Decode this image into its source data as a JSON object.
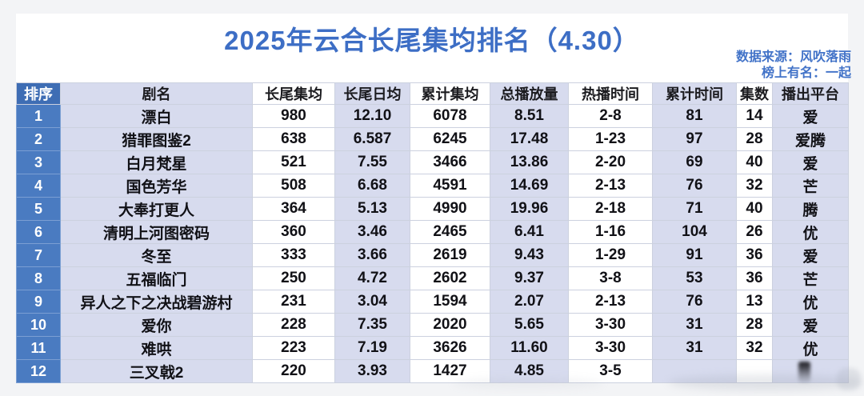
{
  "title": "2025年云合长尾集均排名（4.30）",
  "annotations": {
    "source": "数据来源：风吹落雨",
    "credit": "榜上有名：一起"
  },
  "colors": {
    "title_blue": "#3d6ec5",
    "rank_header_blue": "#3e6db4",
    "rank_cell_blue": "#4a7bc1",
    "lavender_column": "#d7dbee",
    "white_column": "#ffffff",
    "grid_line": "#ccd1df"
  },
  "chart_data": {
    "type": "table",
    "title": "2025年云合长尾集均排名（4.30）",
    "columns": [
      "排序",
      "剧名",
      "长尾集均",
      "长尾日均",
      "累计集均",
      "总播放量",
      "热播时间",
      "累计时间",
      "集数",
      "播出平台"
    ],
    "rows": [
      [
        "1",
        "漂白",
        "980",
        "12.10",
        "6078",
        "8.51",
        "2-8",
        "81",
        "14",
        "爱"
      ],
      [
        "2",
        "猎罪图鉴2",
        "638",
        "6.587",
        "6245",
        "17.48",
        "1-23",
        "97",
        "28",
        "爱腾"
      ],
      [
        "3",
        "白月梵星",
        "521",
        "7.55",
        "3466",
        "13.86",
        "2-20",
        "69",
        "40",
        "爱"
      ],
      [
        "4",
        "国色芳华",
        "508",
        "6.68",
        "4591",
        "14.69",
        "2-13",
        "76",
        "32",
        "芒"
      ],
      [
        "5",
        "大奉打更人",
        "364",
        "5.13",
        "4990",
        "19.96",
        "2-18",
        "71",
        "40",
        "腾"
      ],
      [
        "6",
        "清明上河图密码",
        "360",
        "3.46",
        "2465",
        "6.41",
        "1-16",
        "104",
        "26",
        "优"
      ],
      [
        "7",
        "冬至",
        "333",
        "3.66",
        "2619",
        "9.43",
        "1-29",
        "91",
        "36",
        "爱"
      ],
      [
        "8",
        "五福临门",
        "250",
        "4.72",
        "2602",
        "9.37",
        "3-8",
        "53",
        "36",
        "芒"
      ],
      [
        "9",
        "异人之下之决战碧游村",
        "231",
        "3.04",
        "1594",
        "2.07",
        "2-13",
        "76",
        "13",
        "优"
      ],
      [
        "10",
        "爱你",
        "228",
        "7.35",
        "2020",
        "5.65",
        "3-30",
        "31",
        "28",
        "爱"
      ],
      [
        "11",
        "难哄",
        "223",
        "7.19",
        "3626",
        "11.60",
        "3-30",
        "31",
        "32",
        "优"
      ],
      [
        "12",
        "三叉戟2",
        "220",
        "3.93",
        "1427",
        "4.85",
        "3-5",
        "",
        "",
        ""
      ]
    ]
  }
}
